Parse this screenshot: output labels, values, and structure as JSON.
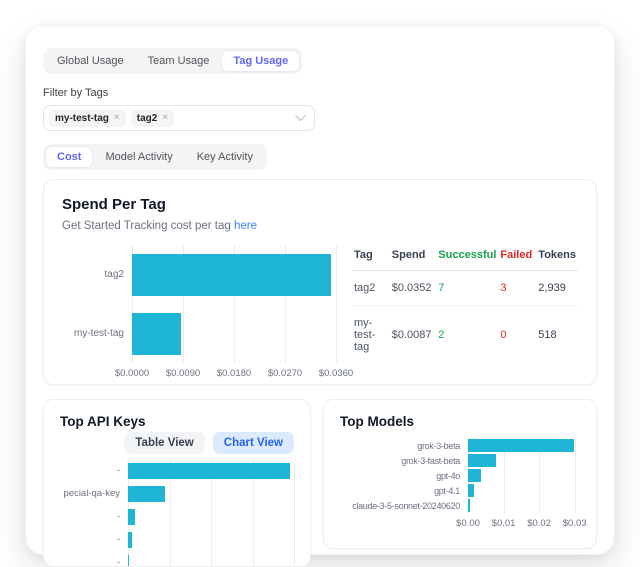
{
  "usage_tabs": {
    "items": [
      {
        "label": "Global Usage"
      },
      {
        "label": "Team Usage"
      },
      {
        "label": "Tag Usage"
      }
    ],
    "active": "Tag Usage"
  },
  "filter": {
    "label": "Filter by Tags",
    "tags": [
      {
        "label": "my-test-tag",
        "remove_icon": "×"
      },
      {
        "label": "tag2",
        "remove_icon": "×"
      }
    ]
  },
  "view_tabs": {
    "items": [
      {
        "label": "Cost"
      },
      {
        "label": "Model Activity"
      },
      {
        "label": "Key Activity"
      }
    ],
    "active": "Cost"
  },
  "spend_panel": {
    "title": "Spend Per Tag",
    "subtitle": "Get Started Tracking cost per tag",
    "link_text": "here",
    "table": {
      "headers": [
        "Tag",
        "Spend",
        "Successful",
        "Failed",
        "Tokens"
      ],
      "rows": [
        [
          "tag2",
          "$0.0352",
          "7",
          "3",
          "2,939"
        ],
        [
          "my-test-tag",
          "$0.0087",
          "2",
          "0",
          "518"
        ]
      ]
    }
  },
  "api_keys_panel": {
    "title": "Top API Keys",
    "buttons": [
      {
        "label": "Table View"
      },
      {
        "label": "Chart View"
      }
    ],
    "active_button": "Chart View"
  },
  "models_panel": {
    "title": "Top Models"
  },
  "colors": {
    "accent_indigo": "#6366f1",
    "link_blue": "#3b82f6",
    "bar_cyan": "#1eb6d4",
    "success_green": "#16a34a",
    "fail_red": "#dc2626",
    "active_button_bg": "#dbeafe",
    "active_button_text": "#2563eb"
  },
  "chart_data": [
    {
      "name": "spend_per_tag",
      "type": "bar",
      "orientation": "horizontal",
      "title": "Spend Per Tag",
      "categories": [
        "tag2",
        "my-test-tag"
      ],
      "values": [
        0.0352,
        0.0087
      ],
      "xlim": [
        0,
        0.036
      ],
      "tick_values": [
        0,
        0.009,
        0.018,
        0.027,
        0.036
      ],
      "tick_labels": [
        "$0.0000",
        "$0.0090",
        "$0.0180",
        "$0.0270",
        "$0.0360"
      ],
      "xlabel": "",
      "ylabel": "",
      "grid": true,
      "color": "#1eb6d4"
    },
    {
      "name": "top_api_keys",
      "type": "bar",
      "orientation": "horizontal",
      "title": "Top API Keys",
      "categories": [
        "-",
        "pecial-qa-key",
        "-",
        "-",
        "-"
      ],
      "values": [
        0.0352,
        0.008,
        0.0015,
        0.0008,
        0.0001
      ],
      "xlim": [
        0,
        0.036
      ],
      "tick_values": [
        0,
        0.009,
        0.018,
        0.027,
        0.036
      ],
      "tick_labels": [],
      "xlabel": "",
      "ylabel": "",
      "grid": true,
      "color": "#1eb6d4"
    },
    {
      "name": "top_models",
      "type": "bar",
      "orientation": "horizontal",
      "title": "Top Models",
      "categories": [
        "grok-3-beta",
        "grok-3-fast-beta",
        "gpt-4o",
        "gpt-4.1",
        "claude-3-5-sonnet-20240620"
      ],
      "values": [
        0.0297,
        0.008,
        0.0037,
        0.0017,
        0.0007
      ],
      "xlim": [
        0,
        0.0315
      ],
      "tick_values": [
        0,
        0.01,
        0.02,
        0.03
      ],
      "tick_labels": [
        "$0.00",
        "$0.01",
        "$0.02",
        "$0.03"
      ],
      "xlabel": "",
      "ylabel": "",
      "grid": true,
      "color": "#1eb6d4"
    }
  ]
}
